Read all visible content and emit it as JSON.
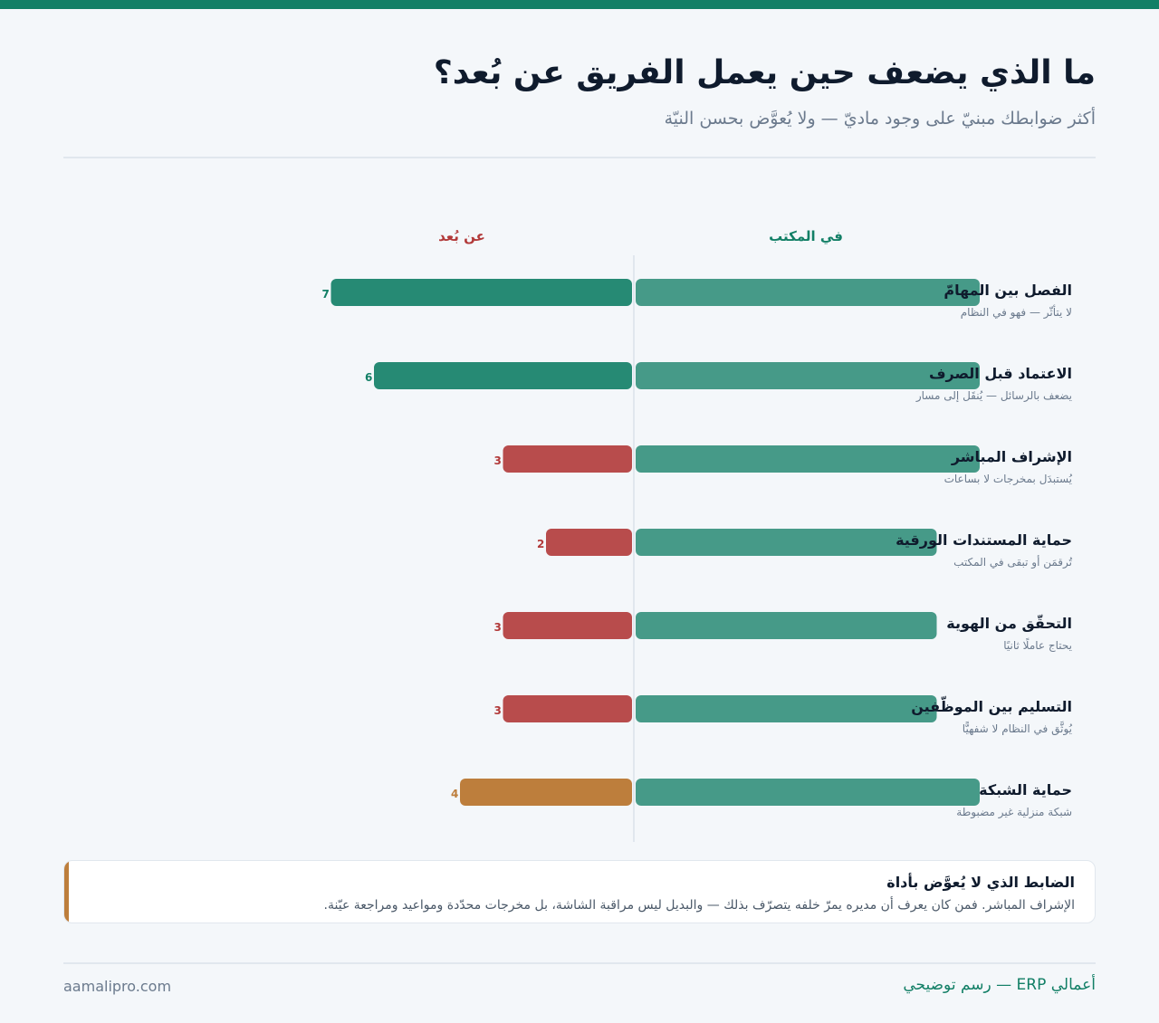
{
  "page": {
    "title": "ما الذي يضعف حين يعمل الفريق عن بُعد؟",
    "subtitle": "أكثر ضوابطك مبنيّ على وجود ماديّ — ولا يُعوَّض بحسن النيّة"
  },
  "colors": {
    "accent": "#127f66",
    "office_bar": "#469a88",
    "remote_strong": "#268a74",
    "remote_weak": "#b84c4c",
    "remote_mid": "#bd7e3c"
  },
  "chart_data": {
    "type": "bar",
    "orientation": "horizontal-diverging",
    "column_headers": {
      "office": "في المكتب",
      "remote": "عن بُعد"
    },
    "categories": [
      "الفصل بين المهامّ",
      "الاعتماد قبل الصرف",
      "الإشراف المباشر",
      "حماية المستندات الورقية",
      "التحقّق من الهوية",
      "التسليم بين الموظّفين",
      "حماية الشبكة"
    ],
    "notes": [
      "لا يتأثّر — فهو في النظام",
      "يضعف بالرسائل — يُنقَل إلى مسار",
      "يُستبدَل بمخرجات لا بساعات",
      "تُرقمَن أو تبقى في المكتب",
      "يحتاج عاملًا ثانيًا",
      "يُوثَّق في النظام لا شفهيًّا",
      "شبكة منزلية غير مضبوطة"
    ],
    "series": [
      {
        "name": "في المكتب",
        "values": [
          8,
          8,
          8,
          7,
          7,
          7,
          8
        ],
        "color": "#469a88"
      },
      {
        "name": "عن بُعد",
        "values": [
          7,
          6,
          3,
          2,
          3,
          3,
          4
        ],
        "colors": [
          "#268a74",
          "#268a74",
          "#b84c4c",
          "#b84c4c",
          "#b84c4c",
          "#b84c4c",
          "#bd7e3c"
        ],
        "label_colors": [
          "#127f66",
          "#127f66",
          "#b23a3a",
          "#b23a3a",
          "#b23a3a",
          "#b23a3a",
          "#bd7e3c"
        ]
      }
    ],
    "xlim": [
      0,
      8
    ],
    "grid": false,
    "legend": "top"
  },
  "callout": {
    "title": "الضابط الذي لا يُعوَّض بأداة",
    "text": "الإشراف المباشر. فمن كان يعرف أن مديره يمرّ خلفه يتصرّف بذلك — والبديل ليس مراقبة الشاشة، بل مخرجات محدّدة ومواعيد ومراجعة عيّنة."
  },
  "footer": {
    "brand": "أعمالي ERP — رسم توضيحي",
    "site": "aamalipro.com"
  }
}
